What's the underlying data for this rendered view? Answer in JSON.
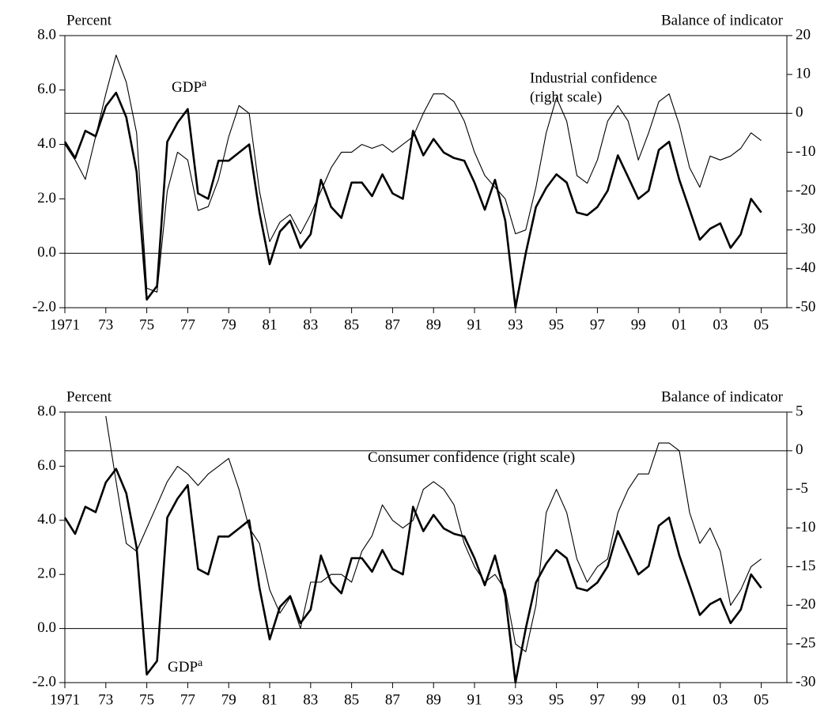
{
  "chart_data": [
    {
      "type": "line",
      "left_axis_label": "Percent",
      "right_axis_label": "Balance of indicator",
      "x": [
        1971,
        1971.5,
        1972,
        1972.5,
        1973,
        1973.5,
        1974,
        1974.5,
        1975,
        1975.5,
        1976,
        1976.5,
        1977,
        1977.5,
        1978,
        1978.5,
        1979,
        1979.5,
        1980,
        1980.5,
        1981,
        1981.5,
        1982,
        1982.5,
        1983,
        1983.5,
        1984,
        1984.5,
        1985,
        1985.5,
        1986,
        1986.5,
        1987,
        1987.5,
        1988,
        1988.5,
        1989,
        1989.5,
        1990,
        1990.5,
        1991,
        1991.5,
        1992,
        1992.5,
        1993,
        1993.5,
        1994,
        1994.5,
        1995,
        1995.5,
        1996,
        1996.5,
        1997,
        1997.5,
        1998,
        1998.5,
        1999,
        1999.5,
        2000,
        2000.5,
        2001,
        2001.5,
        2002,
        2002.5,
        2003,
        2003.5,
        2004,
        2004.5,
        2005
      ],
      "xlim": [
        1971,
        2006.25
      ],
      "xticks": [
        1971,
        {
          "value": 1973,
          "label": "73"
        },
        {
          "value": 1975,
          "label": "75"
        },
        {
          "value": 1977,
          "label": "77"
        },
        {
          "value": 1979,
          "label": "79"
        },
        {
          "value": 1981,
          "label": "81"
        },
        {
          "value": 1983,
          "label": "83"
        },
        {
          "value": 1985,
          "label": "85"
        },
        {
          "value": 1987,
          "label": "87"
        },
        {
          "value": 1989,
          "label": "89"
        },
        {
          "value": 1991,
          "label": "91"
        },
        {
          "value": 1993,
          "label": "93"
        },
        {
          "value": 1995,
          "label": "95"
        },
        {
          "value": 1997,
          "label": "97"
        },
        {
          "value": 1999,
          "label": "99"
        },
        {
          "value": 2001,
          "label": "01"
        },
        {
          "value": 2003,
          "label": "03"
        },
        {
          "value": 2005,
          "label": "05"
        }
      ],
      "ylim": [
        -2,
        8
      ],
      "yticks": [
        {
          "value": -2,
          "label": "-2.0"
        },
        {
          "value": 0,
          "label": "0.0"
        },
        {
          "value": 2,
          "label": "2.0"
        },
        {
          "value": 4,
          "label": "4.0"
        },
        {
          "value": 6,
          "label": "6.0"
        },
        {
          "value": 8,
          "label": "8.0"
        }
      ],
      "y2lim": [
        -50,
        20
      ],
      "y2ticks": [
        -50,
        -40,
        -30,
        -20,
        -10,
        0,
        10,
        20
      ],
      "series": [
        {
          "name": "GDP",
          "note": "a",
          "color": "#000000",
          "values": [
            4.1,
            3.5,
            4.5,
            4.3,
            5.4,
            5.9,
            5.0,
            3.0,
            -1.7,
            -1.2,
            4.1,
            4.8,
            5.3,
            2.2,
            2.0,
            3.4,
            3.4,
            3.7,
            4.0,
            1.5,
            -0.4,
            0.8,
            1.2,
            0.2,
            0.7,
            2.7,
            1.7,
            1.3,
            2.6,
            2.6,
            2.1,
            2.9,
            2.2,
            2.0,
            4.5,
            3.6,
            4.2,
            3.7,
            3.5,
            3.4,
            2.6,
            1.6,
            2.7,
            1.2,
            -2.0,
            0.0,
            1.7,
            2.4,
            2.9,
            2.6,
            1.5,
            1.4,
            1.7,
            2.3,
            3.6,
            2.8,
            2.0,
            2.3,
            3.8,
            4.1,
            2.7,
            1.6,
            0.5,
            0.9,
            1.1,
            0.2,
            0.7,
            2.0,
            1.5
          ]
        },
        {
          "name": "Industrial confidence",
          "note": "(right scale)",
          "color": "#000000",
          "axis": "y2",
          "values": [
            -8,
            -12,
            -17,
            -6,
            5,
            15,
            8,
            -5,
            -45,
            -46,
            -20,
            -10,
            -12,
            -25,
            -24,
            -17,
            -6,
            2,
            0,
            -20,
            -33,
            -28,
            -26,
            -31,
            -26,
            -20,
            -14,
            -10,
            -10,
            -8,
            -9,
            -8,
            -10,
            -8,
            -6,
            0,
            5,
            5,
            3,
            -2,
            -10,
            -16,
            -19,
            -22,
            -31,
            -30,
            -19,
            -5,
            4,
            -2,
            -16,
            -18,
            -12,
            -2,
            2,
            -2,
            -12,
            -5,
            3,
            5,
            -3,
            -14,
            -19,
            -11,
            -12,
            -11,
            -9,
            -5,
            -7
          ]
        }
      ]
    },
    {
      "type": "line",
      "left_axis_label": "Percent",
      "right_axis_label": "Balance of indicator",
      "x": [
        1971,
        1971.5,
        1972,
        1972.5,
        1973,
        1973.5,
        1974,
        1974.5,
        1975,
        1975.5,
        1976,
        1976.5,
        1977,
        1977.5,
        1978,
        1978.5,
        1979,
        1979.5,
        1980,
        1980.5,
        1981,
        1981.5,
        1982,
        1982.5,
        1983,
        1983.5,
        1984,
        1984.5,
        1985,
        1985.5,
        1986,
        1986.5,
        1987,
        1987.5,
        1988,
        1988.5,
        1989,
        1989.5,
        1990,
        1990.5,
        1991,
        1991.5,
        1992,
        1992.5,
        1993,
        1993.5,
        1994,
        1994.5,
        1995,
        1995.5,
        1996,
        1996.5,
        1997,
        1997.5,
        1998,
        1998.5,
        1999,
        1999.5,
        2000,
        2000.5,
        2001,
        2001.5,
        2002,
        2002.5,
        2003,
        2003.5,
        2004,
        2004.5,
        2005
      ],
      "xlim": [
        1971,
        2006.25
      ],
      "xticks": [
        1971,
        {
          "value": 1973,
          "label": "73"
        },
        {
          "value": 1975,
          "label": "75"
        },
        {
          "value": 1977,
          "label": "77"
        },
        {
          "value": 1979,
          "label": "79"
        },
        {
          "value": 1981,
          "label": "81"
        },
        {
          "value": 1983,
          "label": "83"
        },
        {
          "value": 1985,
          "label": "85"
        },
        {
          "value": 1987,
          "label": "87"
        },
        {
          "value": 1989,
          "label": "89"
        },
        {
          "value": 1991,
          "label": "91"
        },
        {
          "value": 1993,
          "label": "93"
        },
        {
          "value": 1995,
          "label": "95"
        },
        {
          "value": 1997,
          "label": "97"
        },
        {
          "value": 1999,
          "label": "99"
        },
        {
          "value": 2001,
          "label": "01"
        },
        {
          "value": 2003,
          "label": "03"
        },
        {
          "value": 2005,
          "label": "05"
        }
      ],
      "ylim": [
        -2,
        8
      ],
      "yticks": [
        {
          "value": -2,
          "label": "-2.0"
        },
        {
          "value": 0,
          "label": "0.0"
        },
        {
          "value": 2,
          "label": "2.0"
        },
        {
          "value": 4,
          "label": "4.0"
        },
        {
          "value": 6,
          "label": "6.0"
        },
        {
          "value": 8,
          "label": "8.0"
        }
      ],
      "y2lim": [
        -30,
        5
      ],
      "y2ticks": [
        -30,
        -25,
        -20,
        -15,
        -10,
        -5,
        0,
        5
      ],
      "series": [
        {
          "name": "GDP",
          "note": "a",
          "color": "#000000",
          "values": [
            4.1,
            3.5,
            4.5,
            4.3,
            5.4,
            5.9,
            5.0,
            3.0,
            -1.7,
            -1.2,
            4.1,
            4.8,
            5.3,
            2.2,
            2.0,
            3.4,
            3.4,
            3.7,
            4.0,
            1.5,
            -0.4,
            0.8,
            1.2,
            0.2,
            0.7,
            2.7,
            1.7,
            1.3,
            2.6,
            2.6,
            2.1,
            2.9,
            2.2,
            2.0,
            4.5,
            3.6,
            4.2,
            3.7,
            3.5,
            3.4,
            2.6,
            1.6,
            2.7,
            1.2,
            -2.0,
            0.0,
            1.7,
            2.4,
            2.9,
            2.6,
            1.5,
            1.4,
            1.7,
            2.3,
            3.6,
            2.8,
            2.0,
            2.3,
            3.8,
            4.1,
            2.7,
            1.6,
            0.5,
            0.9,
            1.1,
            0.2,
            0.7,
            2.0,
            1.5
          ]
        },
        {
          "name": "Consumer confidence",
          "note": "(right scale)",
          "color": "#000000",
          "axis": "y2",
          "values": [
            null,
            null,
            null,
            null,
            4.5,
            -4,
            -12,
            -13,
            -10,
            -7,
            -4,
            -2,
            -3,
            -4.5,
            -3,
            -2,
            -1,
            -5,
            -10,
            -12,
            -18,
            -21,
            -19,
            -23,
            -17,
            -17,
            -16,
            -16,
            -17,
            -13,
            -11,
            -7,
            -9,
            -10,
            -9,
            -5,
            -4,
            -5,
            -7,
            -12,
            -15,
            -17,
            -16,
            -18,
            -25,
            -26,
            -20,
            -8,
            -5,
            -8,
            -14,
            -17,
            -15,
            -14,
            -8,
            -5,
            -3,
            -3,
            1,
            1,
            0,
            -8,
            -12,
            -10,
            -13,
            -20,
            -18,
            -15,
            -14
          ]
        }
      ]
    }
  ]
}
